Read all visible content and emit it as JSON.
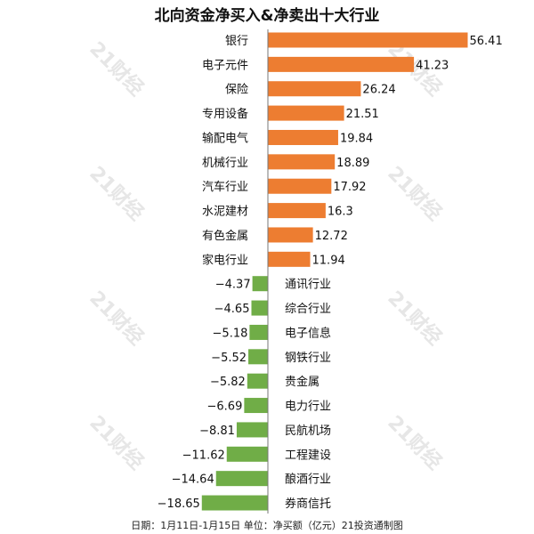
{
  "title": "北向资金净买入&净卖出十大行业",
  "footer": "日期：1月11日-1月15日 单位：净买额（亿元）21投资通制图",
  "watermark": "21财经",
  "chart_data": {
    "type": "bar",
    "orientation": "horizontal",
    "title": "北向资金净买入&净卖出十大行业",
    "categories": [
      "银行",
      "电子元件",
      "保险",
      "专用设备",
      "输配电气",
      "机械行业",
      "汽车行业",
      "水泥建材",
      "有色金属",
      "家电行业",
      "通讯行业",
      "综合行业",
      "电子信息",
      "钢铁行业",
      "贵金属",
      "电力行业",
      "民航机场",
      "工程建设",
      "酿酒行业",
      "券商信托"
    ],
    "values": [
      56.41,
      41.23,
      26.24,
      21.51,
      19.84,
      18.89,
      17.92,
      16.3,
      12.72,
      11.94,
      -4.37,
      -4.65,
      -5.18,
      -5.52,
      -5.82,
      -6.69,
      -8.81,
      -11.62,
      -14.64,
      -18.65
    ],
    "labels": [
      "56.41",
      "41.23",
      "26.24",
      "21.51",
      "19.84",
      "18.89",
      "17.92",
      "16.3",
      "12.72",
      "11.94",
      "-4.37",
      "-4.65",
      "-5.18",
      "-5.52",
      "-5.82",
      "-6.69",
      "-8.81",
      "-11.62",
      "-14.64",
      "-18.65"
    ],
    "colors": {
      "positive": "#ED7D31",
      "negative": "#70AD47"
    },
    "grid": false,
    "legend": "none"
  }
}
